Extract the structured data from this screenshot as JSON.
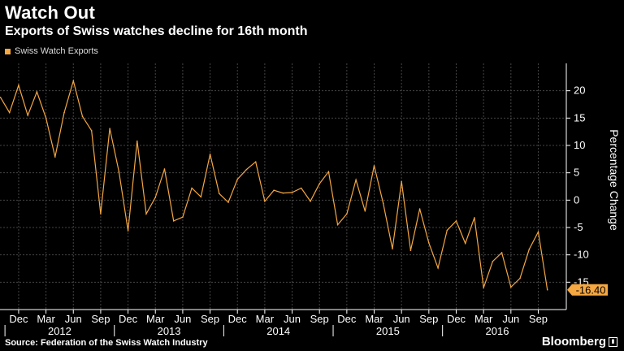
{
  "title": "Watch Out",
  "subtitle": "Exports of Swiss watches decline for 16th month",
  "legend_label": "Swiss Watch Exports",
  "source": "Source: Federation of the Swiss Watch Industry",
  "brand": "Bloomberg",
  "colors": {
    "line": "#f5a742",
    "background": "#000000",
    "grid": "#444444"
  },
  "chart_data": {
    "type": "line",
    "title": "Watch Out",
    "subtitle": "Exports of Swiss watches decline for 16th month",
    "ylabel": "Percentage Change",
    "xlabel": "",
    "ylim": [
      -20,
      25
    ],
    "yticks": [
      20,
      15,
      10,
      5,
      0,
      -5,
      -10,
      -15
    ],
    "month_ticks": [
      "Dec",
      "Mar",
      "Jun",
      "Sep",
      "Dec",
      "Mar",
      "Jun",
      "Sep",
      "Dec",
      "Mar",
      "Jun",
      "Sep",
      "Dec",
      "Mar",
      "Jun",
      "Sep",
      "Dec",
      "Mar",
      "Jun",
      "Sep"
    ],
    "year_labels": [
      "2012",
      "2013",
      "2014",
      "2015",
      "2016"
    ],
    "grid": true,
    "last_value_label": "-16.40",
    "series": [
      {
        "name": "Swiss Watch Exports",
        "start": "2011-10",
        "values": [
          18.8,
          16.0,
          21.0,
          15.5,
          19.8,
          15.0,
          7.9,
          16.0,
          21.8,
          15.3,
          12.7,
          -2.5,
          13.1,
          5.2,
          -5.6,
          10.8,
          -2.5,
          0.5,
          5.7,
          -3.8,
          -3.1,
          2.2,
          0.6,
          8.4,
          1.2,
          -0.4,
          3.8,
          5.6,
          7.0,
          -0.2,
          1.8,
          1.3,
          1.4,
          2.2,
          -0.2,
          3.0,
          5.2,
          -4.5,
          -2.5,
          3.7,
          -2.0,
          6.3,
          -0.6,
          -8.9,
          3.4,
          -9.2,
          -1.6,
          -7.8,
          -12.4,
          -5.5,
          -3.8,
          -7.9,
          -3.2,
          -16.0,
          -11.2,
          -9.6,
          -15.9,
          -14.3,
          -9.0,
          -5.8,
          -16.4
        ]
      }
    ]
  }
}
